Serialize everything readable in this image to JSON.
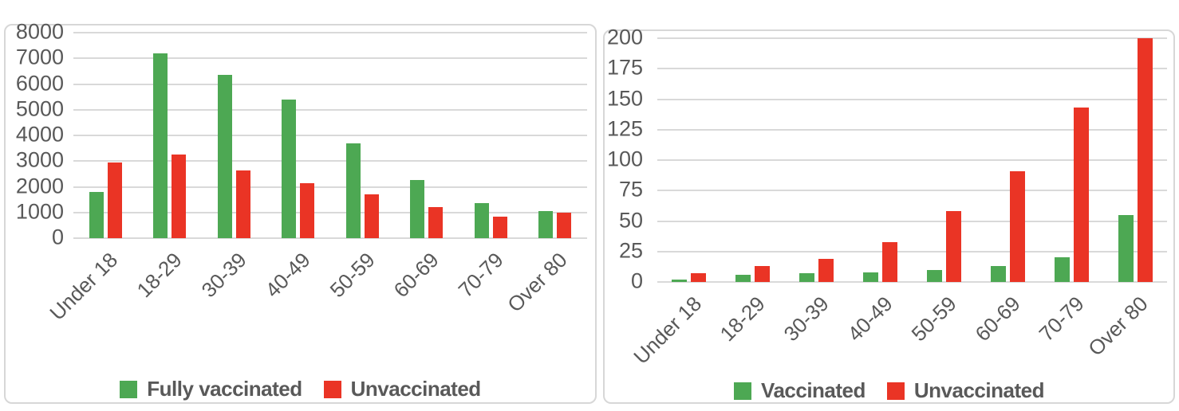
{
  "colors": {
    "vaccinated_green": "#4DA853",
    "unvaccinated_red": "#EA3425",
    "axis_text": "#595959",
    "gridline": "#D9D9D9",
    "panel_border": "#D7D7D7"
  },
  "chart_data": [
    {
      "type": "bar",
      "title": "",
      "categories": [
        "Under 18",
        "18-29",
        "30-39",
        "40-49",
        "50-59",
        "60-69",
        "70-79",
        "Over 80"
      ],
      "series": [
        {
          "name": "Fully vaccinated",
          "color": "#4DA853",
          "values": [
            1800,
            7200,
            6350,
            5400,
            3700,
            2250,
            1350,
            1050
          ]
        },
        {
          "name": "Unvaccinated",
          "color": "#EA3425",
          "values": [
            2950,
            3250,
            2650,
            2150,
            1700,
            1200,
            850,
            1000
          ]
        }
      ],
      "xlabel": "",
      "ylabel": "",
      "ylim": [
        0,
        8000
      ],
      "ytick_step": 1000,
      "grid": true,
      "legend_position": "bottom"
    },
    {
      "type": "bar",
      "title": "",
      "categories": [
        "Under 18",
        "18-29",
        "30-39",
        "40-49",
        "50-59",
        "60-69",
        "70-79",
        "Over 80"
      ],
      "series": [
        {
          "name": "Vaccinated",
          "color": "#4DA853",
          "values": [
            2,
            6,
            7,
            8,
            10,
            13,
            20,
            55
          ]
        },
        {
          "name": "Unvaccinated",
          "color": "#EA3425",
          "values": [
            7,
            13,
            19,
            33,
            58,
            91,
            143,
            200
          ]
        }
      ],
      "xlabel": "",
      "ylabel": "",
      "ylim": [
        0,
        200
      ],
      "ytick_step": 25,
      "grid": true,
      "legend_position": "bottom"
    }
  ]
}
